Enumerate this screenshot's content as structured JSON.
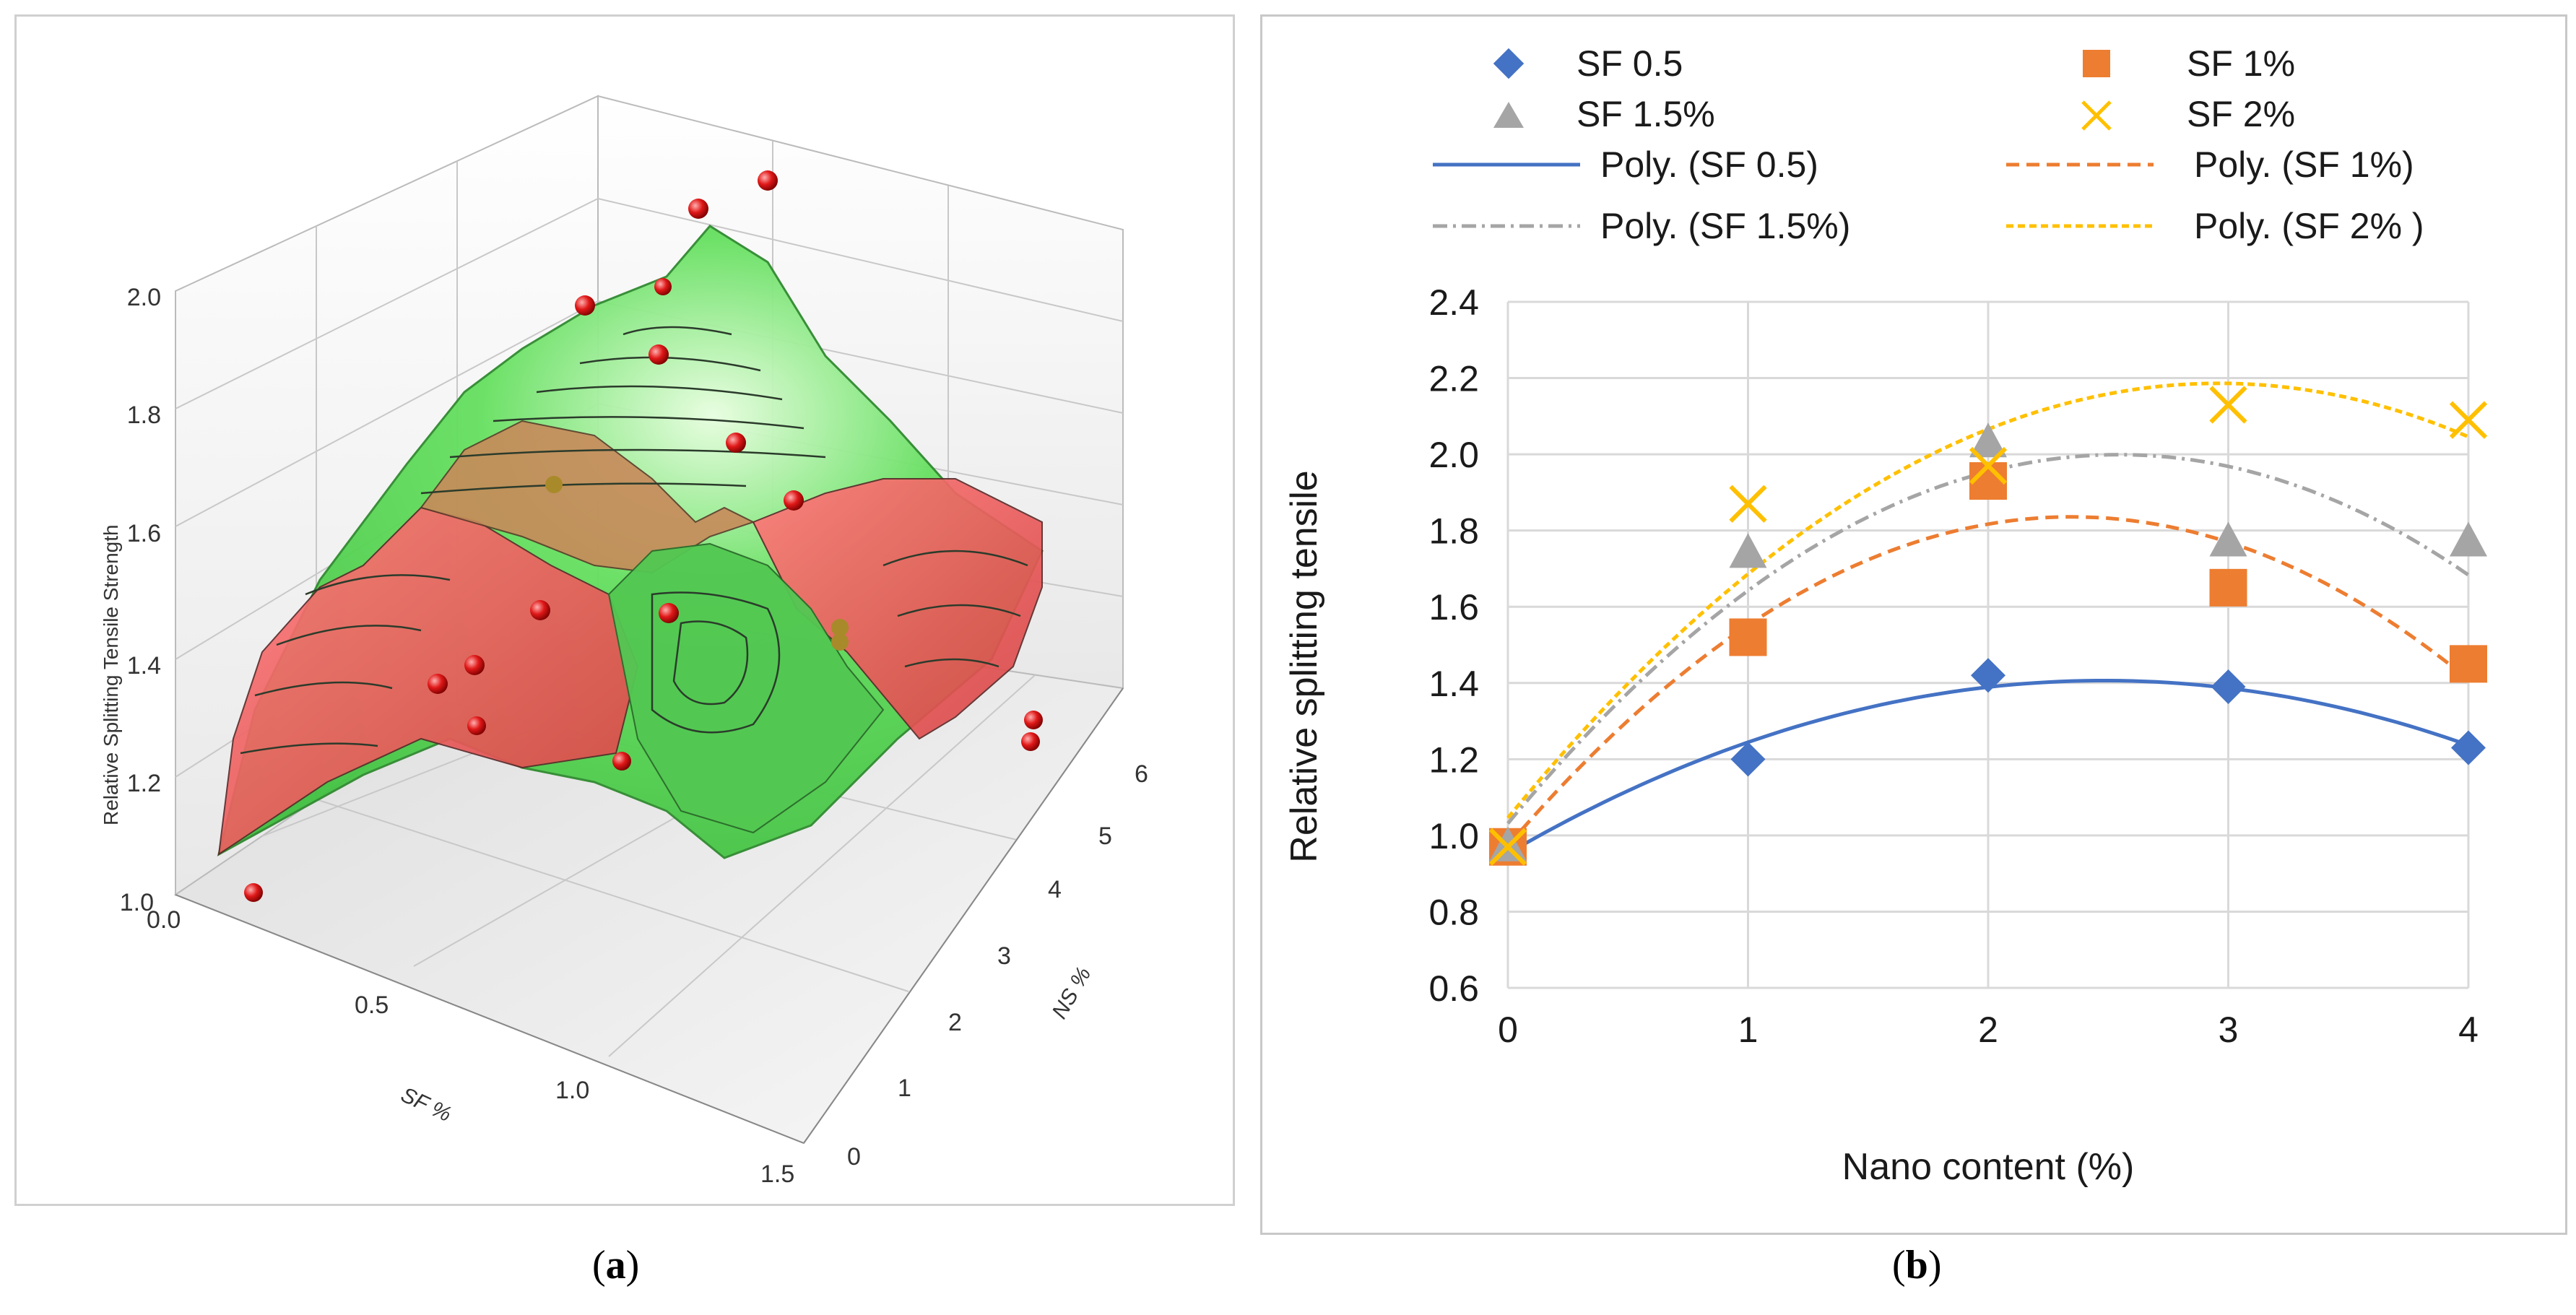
{
  "captions": {
    "a": "(a)",
    "b": "(b)"
  },
  "chart_data": [
    {
      "type": "surface3d",
      "zlabel": "Relative Splitting Tensile Strength",
      "xlabel": "SF %",
      "ylabel": "NS %",
      "z_ticks": [
        "1.0",
        "1.2",
        "1.4",
        "1.6",
        "1.8",
        "2.0"
      ],
      "sf_ticks": [
        "0.0",
        "0.5",
        "1.0",
        "1.5"
      ],
      "ns_ticks": [
        "0",
        "1",
        "2",
        "3",
        "4",
        "5",
        "6"
      ],
      "zlim": [
        1.0,
        2.0
      ],
      "colors": {
        "low": "#e84a4a",
        "mid": "#c8865a",
        "high": "#46d046"
      }
    },
    {
      "type": "scatter",
      "xlabel": "Nano content (%)",
      "ylabel": "Relative splitting tensile",
      "xlim": [
        0,
        4
      ],
      "ylim": [
        0.6,
        2.4
      ],
      "x_ticks": [
        "0",
        "1",
        "2",
        "3",
        "4"
      ],
      "y_ticks": [
        "0.6",
        "0.8",
        "1.0",
        "1.2",
        "1.4",
        "1.6",
        "1.8",
        "2.0",
        "2.2",
        "2.4"
      ],
      "x": [
        0,
        1,
        2,
        3,
        4
      ],
      "series": [
        {
          "name": "SF 0.5",
          "marker": "diamond",
          "color": "#4472c4",
          "values": [
            0.97,
            1.2,
            1.42,
            1.39,
            1.23
          ]
        },
        {
          "name": "SF 1%",
          "marker": "square",
          "color": "#ed7d31",
          "values": [
            0.97,
            1.52,
            1.93,
            1.65,
            1.45
          ]
        },
        {
          "name": "SF 1.5%",
          "marker": "triangle",
          "color": "#a5a5a5",
          "values": [
            0.97,
            1.74,
            2.03,
            1.77,
            1.77
          ]
        },
        {
          "name": "SF 2%",
          "marker": "x",
          "color": "#ffc000",
          "values": [
            0.97,
            1.87,
            1.97,
            2.13,
            2.09
          ]
        }
      ],
      "trendlines": [
        {
          "name": "Poly. (SF 0.5)",
          "style": "solid",
          "color": "#4472c4"
        },
        {
          "name": "Poly. (SF 1%)",
          "style": "dash",
          "color": "#ed7d31"
        },
        {
          "name": "Poly. (SF 1.5%)",
          "style": "dashdot",
          "color": "#a5a5a5"
        },
        {
          "name": "Poly. (SF 2% )",
          "style": "shortdash",
          "color": "#ffc000"
        }
      ]
    }
  ]
}
